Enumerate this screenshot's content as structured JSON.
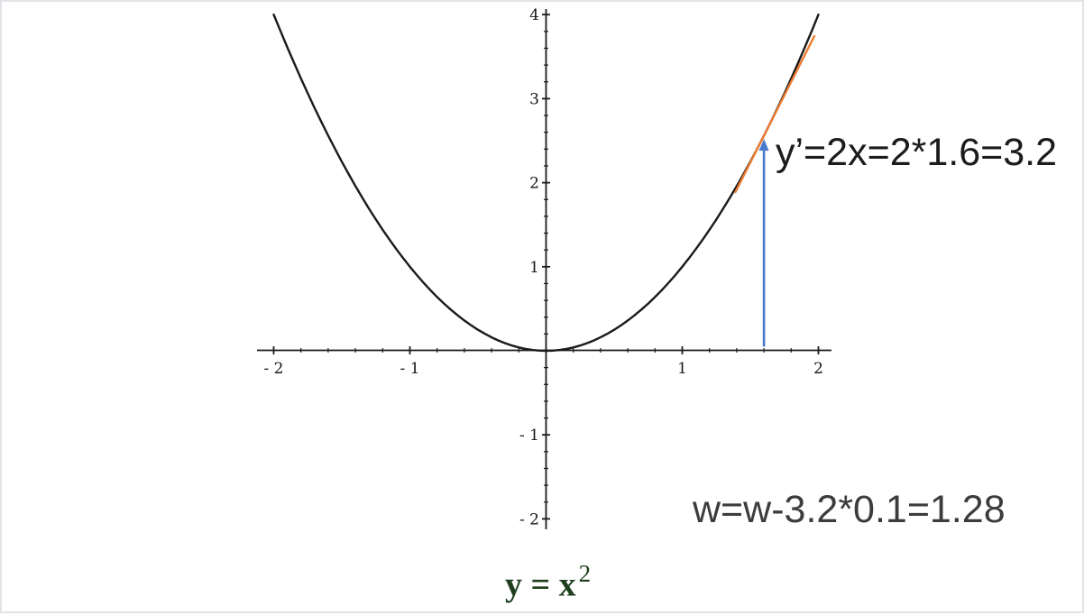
{
  "page": {
    "background": "#ffffff",
    "border_color": "#e4e4e8"
  },
  "chart_data": {
    "type": "line",
    "title": "",
    "xlabel": "",
    "ylabel": "",
    "function_label": "y = x^2",
    "xlim": [
      -2,
      2
    ],
    "ylim": [
      -2,
      4
    ],
    "grid": false,
    "legend_position": "none",
    "minor_tick_step": 0.2,
    "axis_color": "#1a1a1a",
    "tick_label_color": "#161616",
    "x_major_ticks": [
      {
        "value": -2,
        "label": "- 2"
      },
      {
        "value": -1,
        "label": "- 1"
      },
      {
        "value": 1,
        "label": "1"
      },
      {
        "value": 2,
        "label": "2"
      }
    ],
    "y_major_ticks": [
      {
        "value": 4,
        "label": "4"
      },
      {
        "value": 3,
        "label": "3"
      },
      {
        "value": 2,
        "label": "2"
      },
      {
        "value": 1,
        "label": "1"
      },
      {
        "value": -1,
        "label": "- 1"
      },
      {
        "value": -2,
        "label": "- 2"
      }
    ],
    "series": [
      {
        "name": "y = x^2",
        "color": "#1a1a1a",
        "x": [
          -2,
          -1.75,
          -1.5,
          -1.25,
          -1,
          -0.75,
          -0.5,
          -0.25,
          0,
          0.25,
          0.5,
          0.75,
          1,
          1.25,
          1.5,
          1.75,
          2
        ],
        "y": [
          4,
          3.0625,
          2.25,
          1.5625,
          1,
          0.5625,
          0.25,
          0.0625,
          0,
          0.0625,
          0.25,
          0.5625,
          1,
          1.5625,
          2.25,
          3.0625,
          4
        ]
      }
    ],
    "tangent": {
      "at_x": 1.6,
      "at_y": 2.56,
      "slope": 3.2,
      "x_from": 1.39,
      "x_to": 1.97,
      "color": "#ED7D31"
    },
    "arrow": {
      "x": 1.6,
      "y_from": 0.05,
      "y_to": 2.38,
      "tip_y": 2.52,
      "color": "#4878CC"
    }
  },
  "annotations": {
    "derivative": "y’=2x=2*1.6=3.2",
    "weight_update": "w=w-3.2*0.1=1.28"
  },
  "formula": {
    "base": "y = x",
    "exponent": "2",
    "color": "#1e3e1e"
  }
}
